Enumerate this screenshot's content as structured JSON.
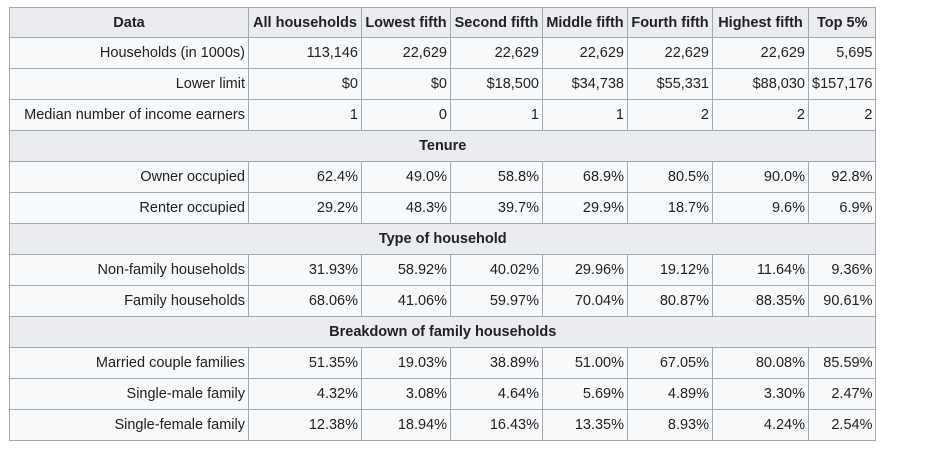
{
  "columns": [
    "Data",
    "All households",
    "Lowest fifth",
    "Second fifth",
    "Middle fifth",
    "Fourth fifth",
    "Highest fifth",
    "Top 5%"
  ],
  "rows_top": [
    {
      "label": "Households (in 1000s)",
      "values": [
        "113,146",
        "22,629",
        "22,629",
        "22,629",
        "22,629",
        "22,629",
        "5,695"
      ]
    },
    {
      "label": "Lower limit",
      "values": [
        "$0",
        "$0",
        "$18,500",
        "$34,738",
        "$55,331",
        "$88,030",
        "$157,176"
      ]
    },
    {
      "label": "Median number of income earners",
      "values": [
        "1",
        "0",
        "1",
        "1",
        "2",
        "2",
        "2"
      ]
    }
  ],
  "sections": [
    {
      "title": "Tenure",
      "rows": [
        {
          "label": "Owner occupied",
          "values": [
            "62.4%",
            "49.0%",
            "58.8%",
            "68.9%",
            "80.5%",
            "90.0%",
            "92.8%"
          ]
        },
        {
          "label": "Renter occupied",
          "values": [
            "29.2%",
            "48.3%",
            "39.7%",
            "29.9%",
            "18.7%",
            "9.6%",
            "6.9%"
          ]
        }
      ]
    },
    {
      "title": "Type of household",
      "rows": [
        {
          "label": "Non-family households",
          "values": [
            "31.93%",
            "58.92%",
            "40.02%",
            "29.96%",
            "19.12%",
            "11.64%",
            "9.36%"
          ]
        },
        {
          "label": "Family households",
          "values": [
            "68.06%",
            "41.06%",
            "59.97%",
            "70.04%",
            "80.87%",
            "88.35%",
            "90.61%"
          ]
        }
      ]
    },
    {
      "title": "Breakdown of family households",
      "rows": [
        {
          "label": "Married couple families",
          "values": [
            "51.35%",
            "19.03%",
            "38.89%",
            "51.00%",
            "67.05%",
            "80.08%",
            "85.59%"
          ]
        },
        {
          "label": "Single-male family",
          "values": [
            "4.32%",
            "3.08%",
            "4.64%",
            "5.69%",
            "4.89%",
            "3.30%",
            "2.47%"
          ]
        },
        {
          "label": "Single-female family",
          "values": [
            "12.38%",
            "18.94%",
            "16.43%",
            "13.35%",
            "8.93%",
            "4.24%",
            "2.54%"
          ]
        }
      ]
    }
  ]
}
